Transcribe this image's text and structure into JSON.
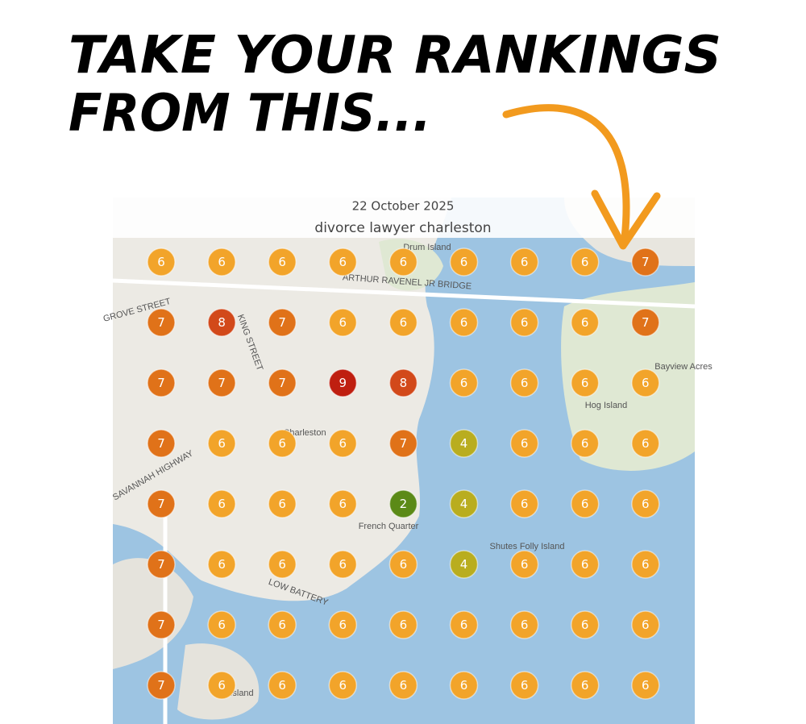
{
  "header": {
    "lines": [
      "TAKE YOUR RANKINGS",
      "FROM THIS..."
    ]
  },
  "map": {
    "date": "22 October 2025",
    "keyword": "divorce lawyer charleston",
    "labels": [
      "Drum Island",
      "Charleston",
      "Hog Island",
      "French Quarter",
      "Shutes Folly Island",
      "Bayview Acres",
      "ARTHUR RAVENEL JR BRIDGE",
      "GROVE STREET",
      "KING STREET",
      "SAVANNAH HIGHWAY",
      "LOW BATTERY",
      "Island"
    ],
    "rank_colors": {
      "2": "#5b8a17",
      "4": "#b9ad1f",
      "6": "#f2a42a",
      "7": "#e07219",
      "8": "#d2491a",
      "9": "#bf1f10"
    },
    "grid": {
      "rows": [
        [
          6,
          6,
          6,
          6,
          6,
          6,
          6,
          6,
          7
        ],
        [
          7,
          8,
          7,
          6,
          6,
          6,
          6,
          6,
          7
        ],
        [
          7,
          7,
          7,
          9,
          8,
          6,
          6,
          6,
          6
        ],
        [
          7,
          6,
          6,
          6,
          7,
          4,
          6,
          6,
          6
        ],
        [
          7,
          6,
          6,
          6,
          2,
          4,
          6,
          6,
          6
        ],
        [
          7,
          6,
          6,
          6,
          6,
          4,
          6,
          6,
          6
        ],
        [
          7,
          6,
          6,
          6,
          6,
          6,
          6,
          6,
          6
        ],
        [
          7,
          6,
          6,
          6,
          6,
          6,
          6,
          6,
          6
        ]
      ]
    }
  }
}
